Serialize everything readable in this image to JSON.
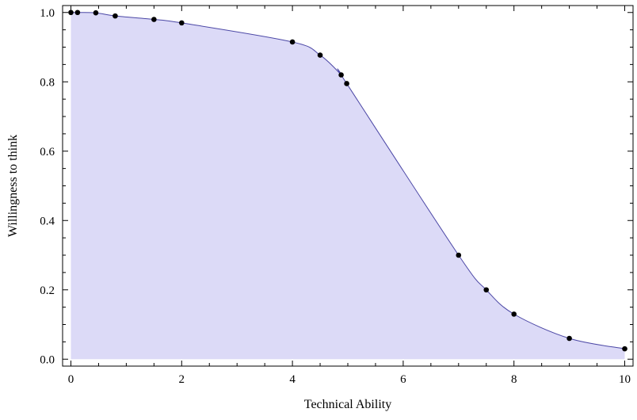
{
  "chart_data": {
    "type": "area",
    "title": "",
    "xlabel": "Technical Ability",
    "ylabel": "Willingness to think",
    "xlim": [
      -0.15,
      10.15
    ],
    "ylim": [
      -0.02,
      1.02
    ],
    "x_ticks": [
      0,
      2,
      4,
      6,
      8,
      10
    ],
    "y_ticks": [
      0.0,
      0.2,
      0.4,
      0.6,
      0.8,
      1.0
    ],
    "x_tick_labels": [
      "0",
      "2",
      "4",
      "6",
      "8",
      "10"
    ],
    "y_tick_labels": [
      "0.0",
      "0.2",
      "0.4",
      "0.6",
      "0.8",
      "1.0"
    ],
    "grid": false,
    "colors": {
      "fill": "#dcdaf7",
      "line": "#4b47a5",
      "marker": "#000000",
      "frame": "#000000"
    },
    "series": [
      {
        "x": [
          0,
          0.12,
          0.45,
          0.8,
          1.5,
          2,
          4,
          4.5,
          4.88,
          4.98,
          7,
          7.5,
          8,
          9,
          10
        ],
        "y": [
          1.0,
          1.0,
          0.999,
          0.99,
          0.98,
          0.97,
          0.915,
          0.877,
          0.82,
          0.795,
          0.3,
          0.2,
          0.13,
          0.06,
          0.03
        ]
      }
    ]
  }
}
